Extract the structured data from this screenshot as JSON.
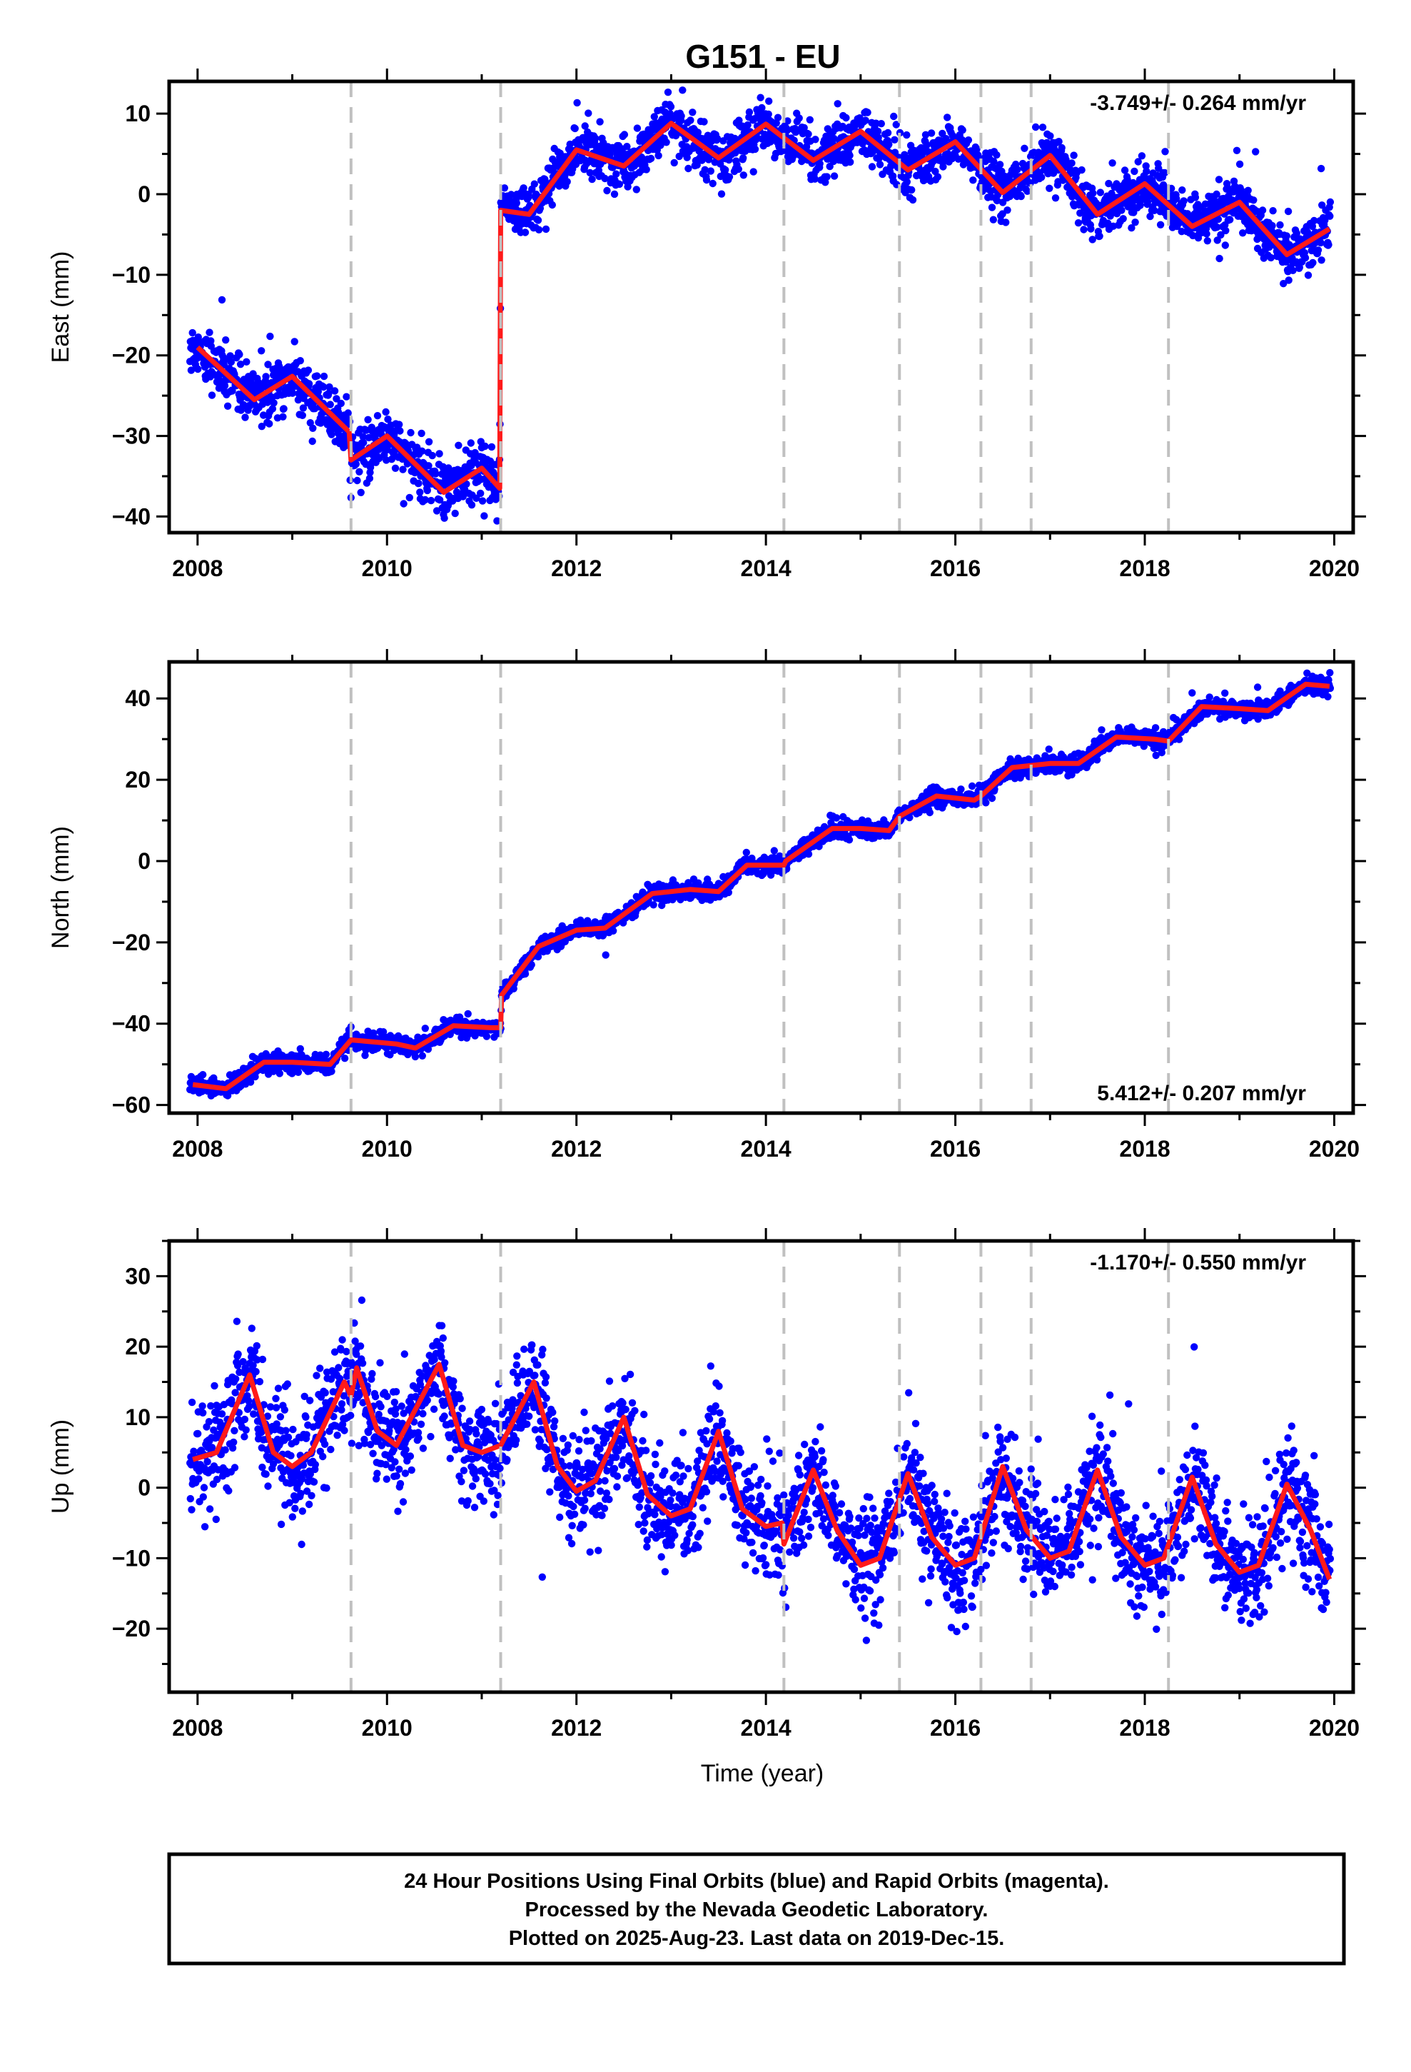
{
  "title": "G151 - EU",
  "x_label": "Time (year)",
  "caption": [
    "24 Hour Positions Using Final Orbits (blue) and Rapid Orbits (magenta).",
    "Processed by the Nevada Geodetic Laboratory.",
    "Plotted on 2025-Aug-23. Last data on 2019-Dec-15."
  ],
  "colors": {
    "data": "#0000ff",
    "model": "#ff1a1a",
    "break": "#c0c0c0",
    "axis": "#000000"
  },
  "chart_data": [
    {
      "type": "scatter",
      "name": "east",
      "ylabel": "East (mm)",
      "rate_label": "-3.749+/- 0.264 mm/yr",
      "rate_position": "top-right",
      "xlim": [
        2007.7,
        2020.2
      ],
      "ylim": [
        -42,
        14
      ],
      "x_ticks": [
        2008,
        2010,
        2012,
        2014,
        2016,
        2018,
        2020
      ],
      "y_ticks": [
        10,
        0,
        -10,
        -20,
        -30,
        -40
      ],
      "x_range_data": [
        2007.92,
        2019.96
      ],
      "breaks": [
        2009.62,
        2011.2,
        2014.19,
        2015.41,
        2016.27,
        2016.8,
        2018.25
      ],
      "model_steps": [
        [
          2009.62,
          -3.0
        ],
        [
          2011.2,
          34.0
        ]
      ],
      "offset_at_start": -19.0,
      "trend_mm_per_yr": -3.749,
      "seasonal_amplitude": 2.3,
      "seasonal_phase_year": 0.95,
      "scatter_sd": 1.6,
      "series": [
        {
          "name": "model",
          "points": [
            [
              2008.0,
              -19
            ],
            [
              2008.6,
              -25.5
            ],
            [
              2009.0,
              -22.6
            ],
            [
              2009.6,
              -29.5
            ],
            [
              2009.62,
              -33
            ],
            [
              2010.0,
              -30
            ],
            [
              2010.6,
              -37
            ],
            [
              2011.0,
              -34
            ],
            [
              2011.19,
              -36.5
            ],
            [
              2011.2,
              -2
            ],
            [
              2011.5,
              -2.5
            ],
            [
              2012.0,
              5.5
            ],
            [
              2012.5,
              3.5
            ],
            [
              2013.0,
              8.8
            ],
            [
              2013.5,
              4.5
            ],
            [
              2014.0,
              8.7
            ],
            [
              2014.5,
              4.2
            ],
            [
              2015.0,
              7.8
            ],
            [
              2015.5,
              3.0
            ],
            [
              2016.0,
              6.5
            ],
            [
              2016.5,
              0.2
            ],
            [
              2017.0,
              4.8
            ],
            [
              2017.5,
              -2.5
            ],
            [
              2018.0,
              1.3
            ],
            [
              2018.5,
              -4.0
            ],
            [
              2019.0,
              -1.0
            ],
            [
              2019.5,
              -7.5
            ],
            [
              2019.95,
              -4.3
            ]
          ]
        }
      ]
    },
    {
      "type": "scatter",
      "name": "north",
      "ylabel": "North (mm)",
      "rate_label": "5.412+/- 0.207 mm/yr",
      "rate_position": "bottom-right",
      "xlim": [
        2007.7,
        2020.2
      ],
      "ylim": [
        -62,
        49
      ],
      "x_ticks": [
        2008,
        2010,
        2012,
        2014,
        2016,
        2018,
        2020
      ],
      "y_ticks": [
        40,
        20,
        0,
        -20,
        -40,
        -60
      ],
      "x_range_data": [
        2007.92,
        2019.96
      ],
      "breaks": [
        2009.62,
        2011.2,
        2014.19,
        2015.41,
        2016.27,
        2016.8,
        2018.25
      ],
      "scatter_sd": 1.1,
      "series": [
        {
          "name": "model",
          "points": [
            [
              2007.95,
              -55
            ],
            [
              2008.3,
              -56
            ],
            [
              2008.7,
              -49.5
            ],
            [
              2009.0,
              -49.5
            ],
            [
              2009.4,
              -50
            ],
            [
              2009.62,
              -44
            ],
            [
              2010.1,
              -45
            ],
            [
              2010.3,
              -46
            ],
            [
              2010.7,
              -40.5
            ],
            [
              2011.1,
              -41
            ],
            [
              2011.2,
              -41
            ],
            [
              2011.21,
              -33
            ],
            [
              2011.6,
              -21
            ],
            [
              2012.0,
              -17
            ],
            [
              2012.3,
              -16.5
            ],
            [
              2012.8,
              -8
            ],
            [
              2013.2,
              -7
            ],
            [
              2013.5,
              -7.5
            ],
            [
              2013.8,
              -1
            ],
            [
              2014.19,
              -1
            ],
            [
              2014.21,
              0
            ],
            [
              2014.7,
              8
            ],
            [
              2015.0,
              8
            ],
            [
              2015.3,
              7.5
            ],
            [
              2015.41,
              11
            ],
            [
              2015.8,
              16
            ],
            [
              2016.2,
              15
            ],
            [
              2016.27,
              16
            ],
            [
              2016.6,
              23
            ],
            [
              2017.0,
              24
            ],
            [
              2017.3,
              24
            ],
            [
              2017.7,
              30.5
            ],
            [
              2018.1,
              30
            ],
            [
              2018.25,
              29.5
            ],
            [
              2018.6,
              38
            ],
            [
              2019.0,
              37.5
            ],
            [
              2019.3,
              37
            ],
            [
              2019.7,
              43.5
            ],
            [
              2019.95,
              43
            ]
          ]
        }
      ]
    },
    {
      "type": "scatter",
      "name": "up",
      "ylabel": "Up (mm)",
      "rate_label": "-1.170+/- 0.550 mm/yr",
      "rate_position": "top-right",
      "xlim": [
        2007.7,
        2020.2
      ],
      "ylim": [
        -29,
        35
      ],
      "x_ticks": [
        2008,
        2010,
        2012,
        2014,
        2016,
        2018,
        2020
      ],
      "y_ticks": [
        30,
        20,
        10,
        0,
        -10,
        -20
      ],
      "x_range_data": [
        2007.92,
        2019.96
      ],
      "breaks": [
        2009.62,
        2011.2,
        2014.19,
        2015.41,
        2016.27,
        2016.8,
        2018.25
      ],
      "scatter_sd": 3.8,
      "series": [
        {
          "name": "model",
          "points": [
            [
              2007.95,
              4
            ],
            [
              2008.2,
              5
            ],
            [
              2008.55,
              16
            ],
            [
              2008.8,
              5
            ],
            [
              2009.0,
              3
            ],
            [
              2009.2,
              5
            ],
            [
              2009.55,
              15
            ],
            [
              2009.62,
              13
            ],
            [
              2009.68,
              17
            ],
            [
              2009.9,
              8
            ],
            [
              2010.1,
              6
            ],
            [
              2010.55,
              17.5
            ],
            [
              2010.8,
              6
            ],
            [
              2011.0,
              5
            ],
            [
              2011.2,
              6
            ],
            [
              2011.55,
              15
            ],
            [
              2011.8,
              3
            ],
            [
              2012.0,
              -0.5
            ],
            [
              2012.2,
              1
            ],
            [
              2012.5,
              10
            ],
            [
              2012.75,
              -1
            ],
            [
              2013.0,
              -4
            ],
            [
              2013.2,
              -3
            ],
            [
              2013.5,
              8
            ],
            [
              2013.75,
              -3
            ],
            [
              2014.0,
              -5.5
            ],
            [
              2014.17,
              -5
            ],
            [
              2014.19,
              -8
            ],
            [
              2014.5,
              2.5
            ],
            [
              2014.75,
              -6
            ],
            [
              2015.0,
              -11
            ],
            [
              2015.2,
              -10
            ],
            [
              2015.5,
              2
            ],
            [
              2015.75,
              -7
            ],
            [
              2016.0,
              -11
            ],
            [
              2016.2,
              -10
            ],
            [
              2016.5,
              3
            ],
            [
              2016.75,
              -6
            ],
            [
              2017.0,
              -10
            ],
            [
              2017.2,
              -9
            ],
            [
              2017.5,
              2.5
            ],
            [
              2017.75,
              -7
            ],
            [
              2018.0,
              -11
            ],
            [
              2018.2,
              -10
            ],
            [
              2018.5,
              1.5
            ],
            [
              2018.75,
              -8
            ],
            [
              2019.0,
              -12
            ],
            [
              2019.2,
              -11
            ],
            [
              2019.5,
              0.5
            ],
            [
              2019.75,
              -6
            ],
            [
              2019.95,
              -13
            ]
          ]
        }
      ]
    }
  ]
}
